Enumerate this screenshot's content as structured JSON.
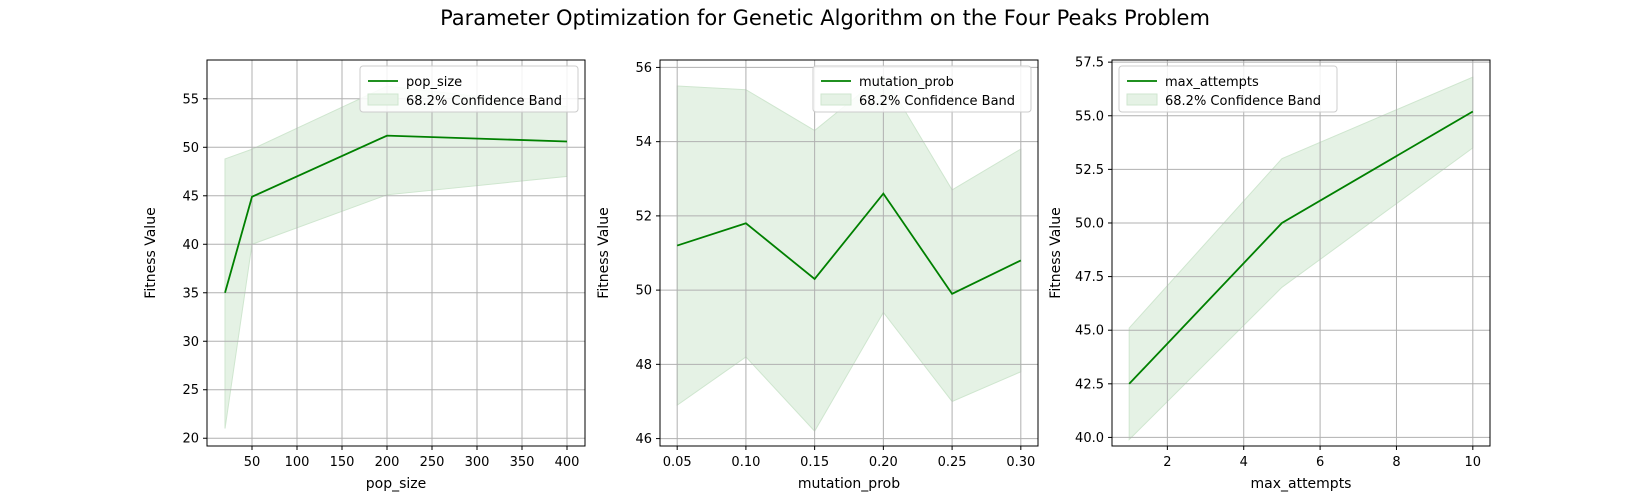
{
  "figure": {
    "title": "Parameter Optimization for Genetic Algorithm on the Four Peaks Problem"
  },
  "colors": {
    "line": "#008000",
    "band": "#e5f2e5",
    "band_edge": "#cfe6cf",
    "grid": "#b0b0b0",
    "axis": "#000000",
    "legend_border": "#cccccc"
  },
  "chart_data": [
    {
      "type": "line",
      "title": "",
      "xlabel": "pop_size",
      "ylabel": "Fitness Value",
      "x": [
        20,
        50,
        200,
        400
      ],
      "series": [
        {
          "name": "pop_size",
          "values": [
            35.0,
            44.9,
            51.2,
            50.6
          ]
        }
      ],
      "band": {
        "name": "68.2% Confidence Band",
        "lower": [
          21.0,
          40.0,
          45.1,
          47.0
        ],
        "upper": [
          48.8,
          49.8,
          56.3,
          54.2
        ]
      },
      "xlim": [
        0,
        420
      ],
      "ylim": [
        19.2,
        59.0
      ],
      "xticks": [
        50,
        100,
        150,
        200,
        250,
        300,
        350,
        400
      ],
      "yticks": [
        20,
        25,
        30,
        35,
        40,
        45,
        50,
        55
      ],
      "grid": true,
      "legend_position": "upper right"
    },
    {
      "type": "line",
      "title": "",
      "xlabel": "mutation_prob",
      "ylabel": "Fitness Value",
      "x": [
        0.05,
        0.1,
        0.15,
        0.2,
        0.25,
        0.3
      ],
      "series": [
        {
          "name": "mutation_prob",
          "values": [
            51.2,
            51.8,
            50.3,
            52.6,
            49.9,
            50.8
          ]
        }
      ],
      "band": {
        "name": "68.2% Confidence Band",
        "lower": [
          46.9,
          48.2,
          46.2,
          49.4,
          47.0,
          47.8
        ],
        "upper": [
          55.5,
          55.4,
          54.3,
          55.8,
          52.7,
          53.8
        ]
      },
      "xlim": [
        0.0375,
        0.3125
      ],
      "ylim": [
        45.8,
        56.2
      ],
      "xticks": [
        0.05,
        0.1,
        0.15,
        0.2,
        0.25,
        0.3
      ],
      "xtick_labels": [
        "0.05",
        "0.10",
        "0.15",
        "0.20",
        "0.25",
        "0.30"
      ],
      "yticks": [
        46,
        48,
        50,
        52,
        54,
        56
      ],
      "grid": true,
      "legend_position": "upper right"
    },
    {
      "type": "line",
      "title": "",
      "xlabel": "max_attempts",
      "ylabel": "Fitness Value",
      "x": [
        1,
        5,
        10
      ],
      "series": [
        {
          "name": "max_attempts",
          "values": [
            42.5,
            50.0,
            55.2
          ]
        }
      ],
      "band": {
        "name": "68.2% Confidence Band",
        "lower": [
          39.9,
          47.0,
          53.5
        ],
        "upper": [
          45.1,
          53.0,
          56.8
        ]
      },
      "xlim": [
        0.55,
        10.45
      ],
      "ylim": [
        39.6,
        57.6
      ],
      "xticks": [
        2,
        4,
        6,
        8,
        10
      ],
      "yticks": [
        40.0,
        42.5,
        45.0,
        47.5,
        50.0,
        52.5,
        55.0,
        57.5
      ],
      "ytick_labels": [
        "40.0",
        "42.5",
        "45.0",
        "47.5",
        "50.0",
        "52.5",
        "55.0",
        "57.5"
      ],
      "grid": true,
      "legend_position": "upper left"
    }
  ]
}
